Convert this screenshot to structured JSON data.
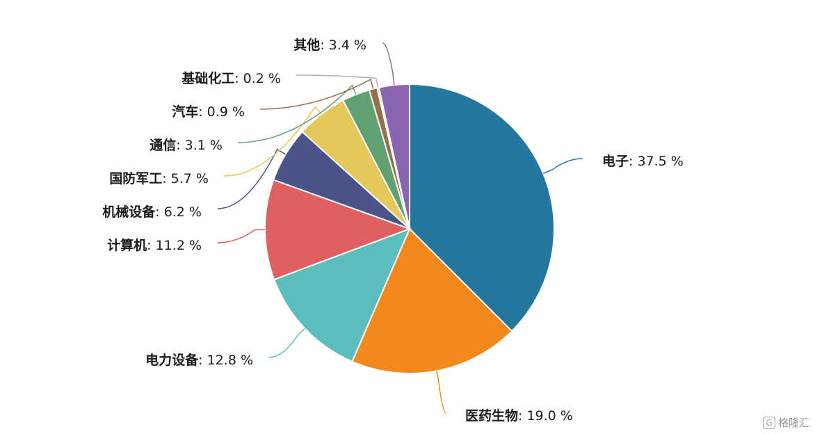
{
  "chart_data": {
    "type": "pie",
    "title": "",
    "unit_suffix": " %",
    "slices": [
      {
        "label": "电子",
        "value": 37.5,
        "color": "#26779f"
      },
      {
        "label": "医药生物",
        "value": 19.0,
        "color": "#f3891d"
      },
      {
        "label": "电力设备",
        "value": 12.8,
        "color": "#5dbdbe"
      },
      {
        "label": "计算机",
        "value": 11.2,
        "color": "#e05f61"
      },
      {
        "label": "机械设备",
        "value": 6.2,
        "color": "#4b5489"
      },
      {
        "label": "国防军工",
        "value": 5.7,
        "color": "#e4c85a"
      },
      {
        "label": "通信",
        "value": 3.1,
        "color": "#62a072"
      },
      {
        "label": "汽车",
        "value": 0.9,
        "color": "#93704e"
      },
      {
        "label": "基础化工",
        "value": 0.2,
        "color": "#a7b1b5"
      },
      {
        "label": "其他",
        "value": 3.4,
        "color": "#8a65b0"
      }
    ]
  },
  "watermark": {
    "text": "格隆汇",
    "icon": "g-logo-icon"
  }
}
